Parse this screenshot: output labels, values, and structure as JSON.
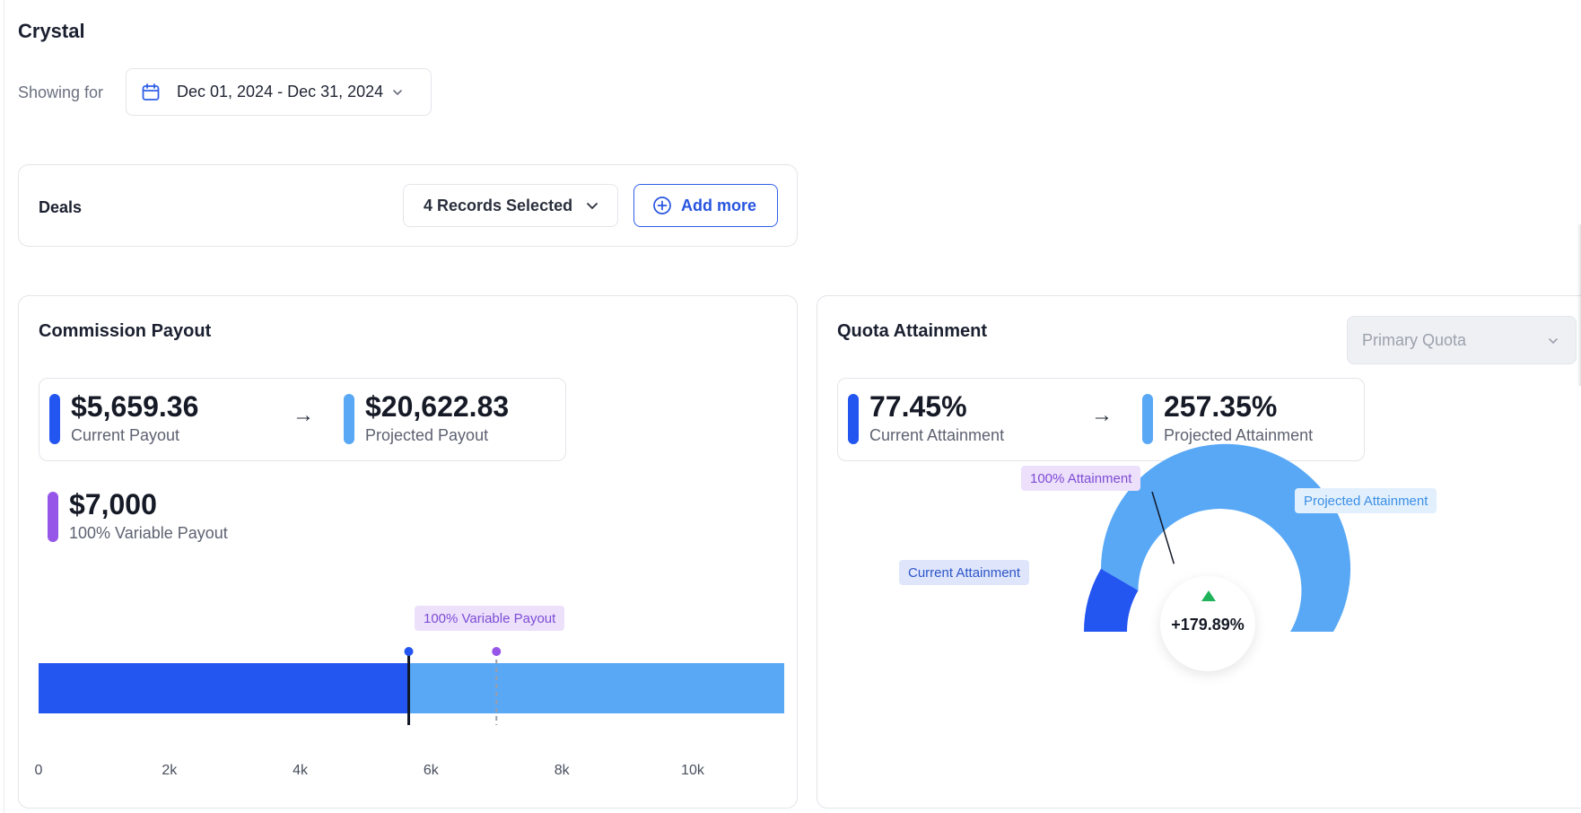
{
  "app": {
    "title": "Crystal"
  },
  "filter": {
    "showing_for_label": "Showing for",
    "date_range": "Dec 01, 2024 - Dec 31, 2024",
    "icon": "calendar-icon"
  },
  "deals": {
    "label": "Deals",
    "records_selected": "4 Records Selected",
    "add_more_label": "Add more"
  },
  "commission_payout": {
    "title": "Commission Payout",
    "current_payout": {
      "value": "$5,659.36",
      "label": "Current Payout",
      "color": "#2356f0"
    },
    "projected_payout": {
      "value": "$20,622.83",
      "label": "Projected Payout",
      "color": "#58a8f6"
    },
    "variable_payout": {
      "value": "$7,000",
      "label": "100% Variable Payout",
      "color": "#9656e8"
    },
    "marker_tag": "100% Variable Payout"
  },
  "quota_attainment": {
    "title": "Quota Attainment",
    "quota_select": "Primary Quota",
    "current_attainment": {
      "value": "77.45%",
      "label": "Current Attainment",
      "color": "#2356f0"
    },
    "projected_attainment": {
      "value": "257.35%",
      "label": "Projected Attainment",
      "color": "#58a8f6"
    },
    "tags": {
      "full": "100% Attainment",
      "current": "Current Attainment",
      "projected": "Projected Attainment"
    },
    "delta": "+179.89%"
  },
  "chart_data": [
    {
      "type": "bar",
      "orientation": "horizontal",
      "stacked": true,
      "x_ticks": [
        "0",
        "2k",
        "4k",
        "6k",
        "8k",
        "10k"
      ],
      "xlim": [
        0,
        11400
      ],
      "series": [
        {
          "name": "Current Payout",
          "value": 5659.36,
          "color": "#2356f0"
        },
        {
          "name": "Projected Payout",
          "value": 11400,
          "color": "#58a8f6"
        }
      ],
      "markers": [
        {
          "name": "Current Payout",
          "x": 5659.36,
          "color": "#2356f0"
        },
        {
          "name": "100% Variable Payout",
          "x": 7000,
          "color": "#9656e8"
        }
      ]
    },
    {
      "type": "gauge",
      "current": 77.45,
      "projected": 257.35,
      "target": 100,
      "colors": {
        "current": "#2356f0",
        "projected": "#58a8f6"
      }
    }
  ]
}
